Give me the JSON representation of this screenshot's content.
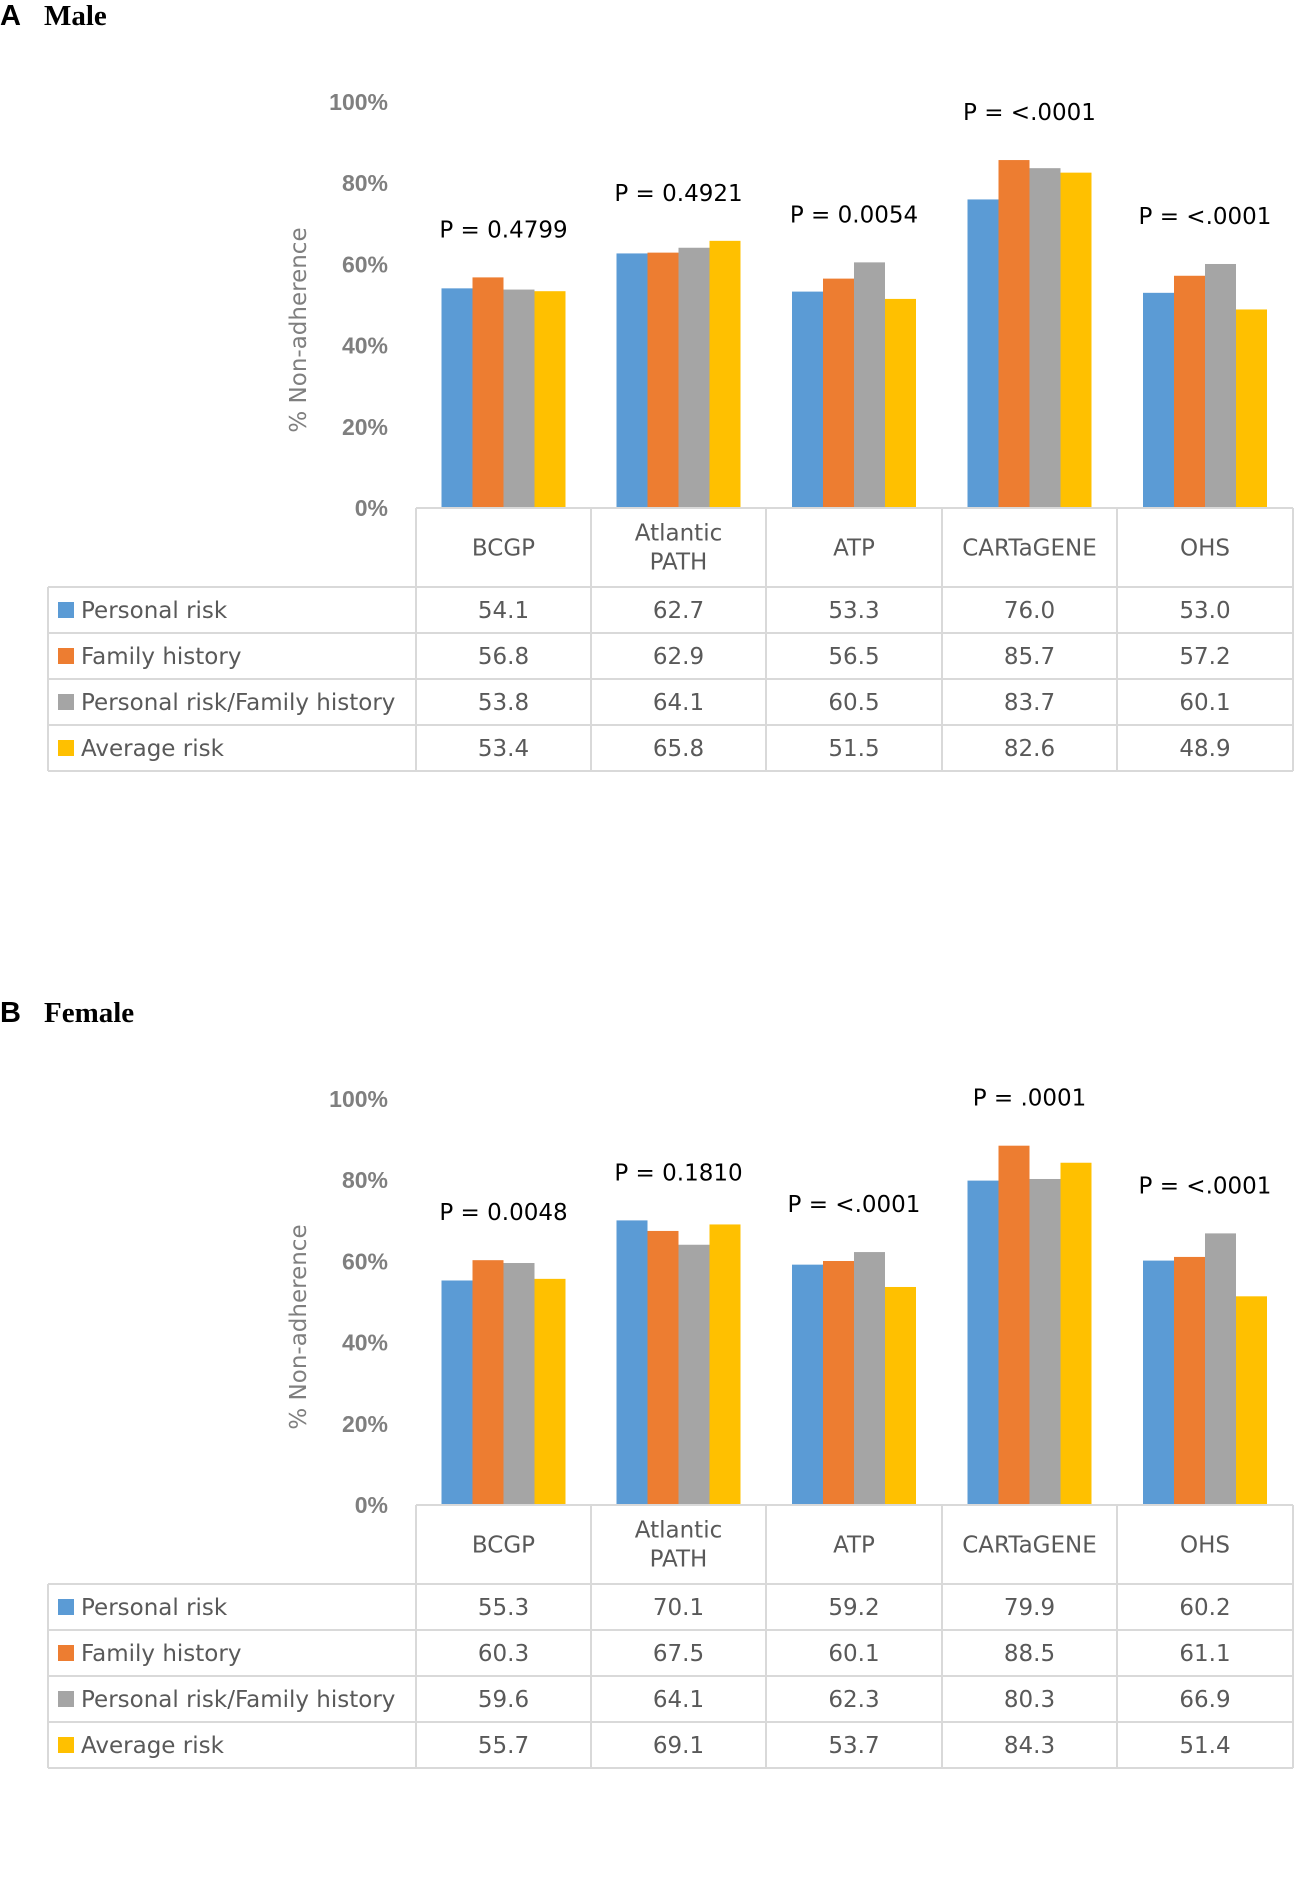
{
  "chart_data": [
    {
      "type": "bar",
      "panel_letter": "A",
      "title": "Male",
      "ylabel": "% Non-adherence",
      "ylim": [
        0,
        100
      ],
      "y_ticks": [
        "0%",
        "20%",
        "40%",
        "60%",
        "80%",
        "100%"
      ],
      "categories": [
        "BCGP",
        "Atlantic PATH",
        "ATP",
        "CARTaGENE",
        "OHS"
      ],
      "category_lines": [
        [
          "BCGP"
        ],
        [
          "Atlantic",
          "PATH"
        ],
        [
          "ATP"
        ],
        [
          "CARTaGENE"
        ],
        [
          "OHS"
        ]
      ],
      "p_values": [
        "P = 0.4799",
        "P = 0.4921",
        "P = 0.0054",
        "P = <.0001",
        "P = <.0001"
      ],
      "series": [
        {
          "name": "Personal risk",
          "color": "#5b9bd5",
          "values": [
            54.1,
            62.7,
            53.3,
            76.0,
            53.0
          ],
          "labels": [
            "54.1",
            "62.7",
            "53.3",
            "76.0",
            "53.0"
          ]
        },
        {
          "name": "Family history",
          "color": "#ed7d31",
          "values": [
            56.8,
            62.9,
            56.5,
            85.7,
            57.2
          ],
          "labels": [
            "56.8",
            "62.9",
            "56.5",
            "85.7",
            "57.2"
          ]
        },
        {
          "name": "Personal risk/Family history",
          "color": "#a5a5a5",
          "values": [
            53.8,
            64.1,
            60.5,
            83.7,
            60.1
          ],
          "labels": [
            "53.8",
            "64.1",
            "60.5",
            "83.7",
            "60.1"
          ]
        },
        {
          "name": "Average risk",
          "color": "#ffc000",
          "values": [
            53.4,
            65.8,
            51.5,
            82.6,
            48.9
          ],
          "labels": [
            "53.4",
            "65.8",
            "51.5",
            "82.6",
            "48.9"
          ]
        }
      ]
    },
    {
      "type": "bar",
      "panel_letter": "B",
      "title": "Female",
      "ylabel": "% Non-adherence",
      "ylim": [
        0,
        100
      ],
      "y_ticks": [
        "0%",
        "20%",
        "40%",
        "60%",
        "80%",
        "100%"
      ],
      "categories": [
        "BCGP",
        "Atlantic PATH",
        "ATP",
        "CARTaGENE",
        "OHS"
      ],
      "category_lines": [
        [
          "BCGP"
        ],
        [
          "Atlantic",
          "PATH"
        ],
        [
          "ATP"
        ],
        [
          "CARTaGENE"
        ],
        [
          "OHS"
        ]
      ],
      "p_values": [
        "P = 0.0048",
        "P = 0.1810",
        "P = <.0001",
        "P = .0001",
        "P = <.0001"
      ],
      "series": [
        {
          "name": "Personal risk",
          "color": "#5b9bd5",
          "values": [
            55.3,
            70.1,
            59.2,
            79.9,
            60.2
          ],
          "labels": [
            "55.3",
            "70.1",
            "59.2",
            "79.9",
            "60.2"
          ]
        },
        {
          "name": "Family history",
          "color": "#ed7d31",
          "values": [
            60.3,
            67.5,
            60.1,
            88.5,
            61.1
          ],
          "labels": [
            "60.3",
            "67.5",
            "60.1",
            "88.5",
            "61.1"
          ]
        },
        {
          "name": "Personal risk/Family history",
          "color": "#a5a5a5",
          "values": [
            59.6,
            64.1,
            62.3,
            80.3,
            66.9
          ],
          "labels": [
            "59.6",
            "64.1",
            "62.3",
            "80.3",
            "66.9"
          ]
        },
        {
          "name": "Average risk",
          "color": "#ffc000",
          "values": [
            55.7,
            69.1,
            53.7,
            84.3,
            51.4
          ],
          "labels": [
            "55.7",
            "69.1",
            "53.7",
            "84.3",
            "51.4"
          ]
        }
      ]
    }
  ]
}
